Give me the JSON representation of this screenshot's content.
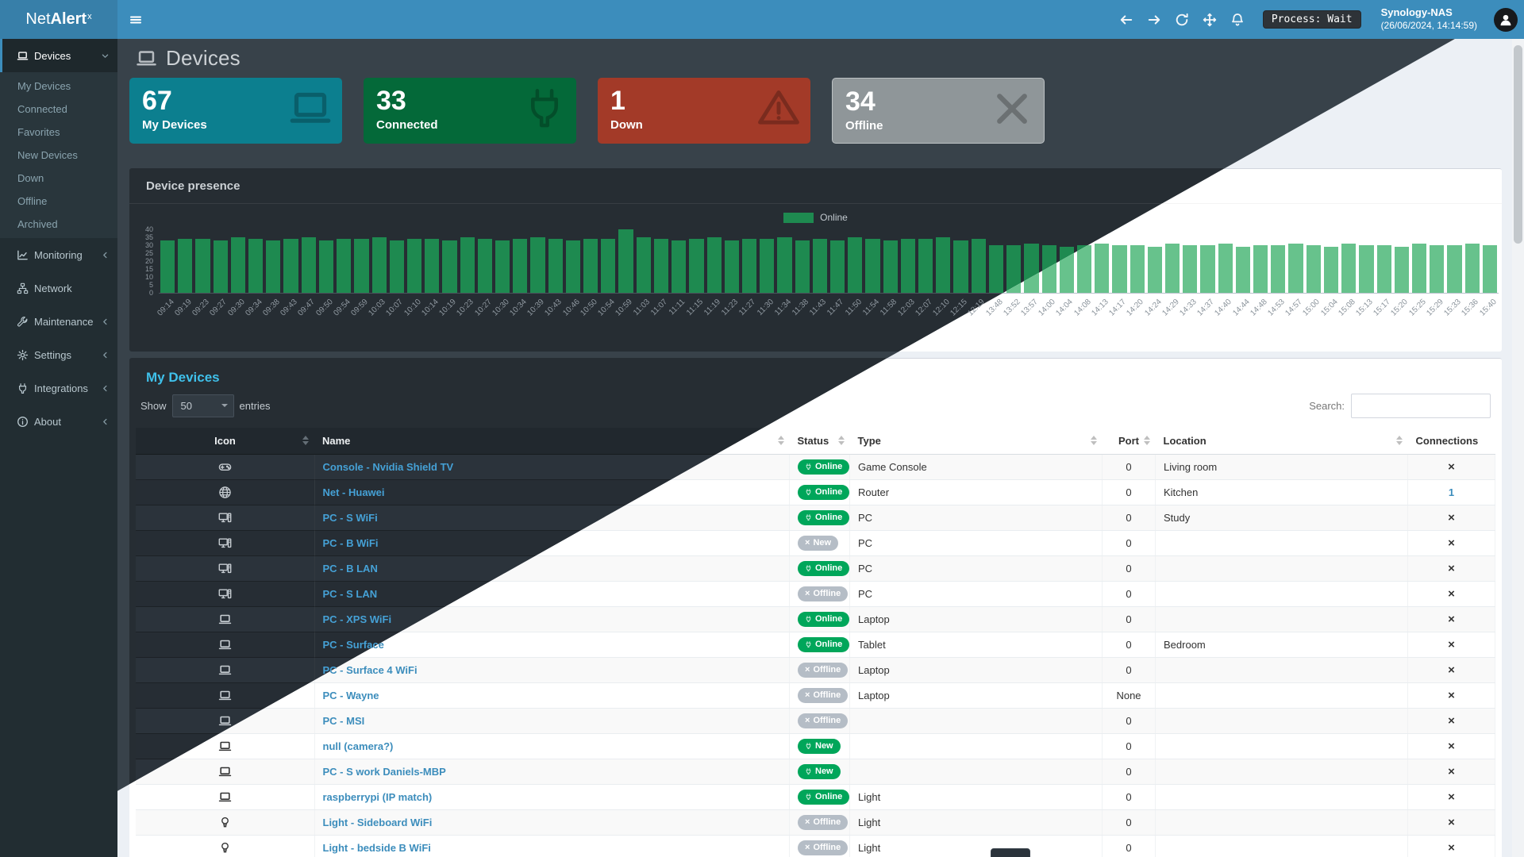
{
  "header": {
    "logo": {
      "light": "Net",
      "bold": "Alert",
      "sup": "x"
    },
    "toolbar_icons": [
      "arrow-left",
      "arrow-right",
      "refresh",
      "move",
      "bell"
    ],
    "process_badge": "Process: Wait",
    "nas_name": "Synology-NAS",
    "nas_time": "(26/06/2024, 14:14:59)"
  },
  "sidebar": {
    "items": [
      {
        "label": "Devices",
        "icon": "laptop",
        "chevron": "down",
        "active": true,
        "children": [
          "My Devices",
          "Connected",
          "Favorites",
          "New Devices",
          "Down",
          "Offline",
          "Archived"
        ]
      },
      {
        "label": "Monitoring",
        "icon": "chart",
        "chevron": "left"
      },
      {
        "label": "Network",
        "icon": "network",
        "chevron": ""
      },
      {
        "label": "Maintenance",
        "icon": "wrench",
        "chevron": "left"
      },
      {
        "label": "Settings",
        "icon": "gear",
        "chevron": "left"
      },
      {
        "label": "Integrations",
        "icon": "plug",
        "chevron": "left"
      },
      {
        "label": "About",
        "icon": "info",
        "chevron": "left"
      }
    ]
  },
  "page": {
    "title": "Devices",
    "title_icon": "laptop"
  },
  "cards": [
    {
      "value": "67",
      "label": "My Devices",
      "icon": "laptop",
      "color": "#0c7f8f"
    },
    {
      "value": "33",
      "label": "Connected",
      "icon": "plug",
      "color": "#046939"
    },
    {
      "value": "1",
      "label": "Down",
      "icon": "warning",
      "color": "#a33a28"
    },
    {
      "value": "34",
      "label": "Offline",
      "icon": "xmark",
      "color": "#8f9699",
      "border": "#bcc1c4"
    }
  ],
  "chart_data": {
    "type": "bar",
    "title": "Device presence",
    "legend_label": "Online",
    "legend_position": "top-center",
    "grid": false,
    "ylim": [
      0,
      40
    ],
    "yticks": [
      40,
      35,
      30,
      25,
      20,
      15,
      10,
      5,
      0
    ],
    "bar_color_dark": "#1e8a50",
    "bar_color_light": "#67c28c",
    "x": [
      "09:14",
      "09:19",
      "09:23",
      "09:27",
      "09:30",
      "09:34",
      "09:38",
      "09:43",
      "09:47",
      "09:50",
      "09:54",
      "09:59",
      "10:03",
      "10:07",
      "10:10",
      "10:14",
      "10:19",
      "10:23",
      "10:27",
      "10:30",
      "10:34",
      "10:39",
      "10:43",
      "10:46",
      "10:50",
      "10:54",
      "10:59",
      "11:03",
      "11:07",
      "11:11",
      "11:15",
      "11:19",
      "11:23",
      "11:27",
      "11:30",
      "11:34",
      "11:38",
      "11:43",
      "11:47",
      "11:50",
      "11:54",
      "11:58",
      "12:03",
      "12:07",
      "12:10",
      "12:15",
      "12:19",
      "13:48",
      "13:52",
      "13:57",
      "14:00",
      "14:04",
      "14:08",
      "14:13",
      "14:17",
      "14:20",
      "14:24",
      "14:29",
      "14:33",
      "14:37",
      "14:40",
      "14:44",
      "14:48",
      "14:53",
      "14:57",
      "15:00",
      "15:04",
      "15:08",
      "15:13",
      "15:17",
      "15:20",
      "15:25",
      "15:29",
      "15:33",
      "15:36",
      "15:40"
    ],
    "series": [
      {
        "name": "Online",
        "values": [
          33,
          34,
          34,
          33,
          35,
          34,
          33,
          34,
          35,
          33,
          34,
          34,
          35,
          33,
          34,
          34,
          33,
          35,
          34,
          33,
          34,
          35,
          34,
          33,
          34,
          34,
          40,
          35,
          34,
          33,
          34,
          35,
          33,
          34,
          34,
          35,
          33,
          34,
          33,
          35,
          34,
          33,
          34,
          34,
          35,
          33,
          34,
          30,
          30,
          31,
          30,
          29,
          30,
          31,
          30,
          30,
          29,
          31,
          30,
          30,
          31,
          29,
          30,
          30,
          31,
          30,
          29,
          31,
          30,
          30,
          29,
          31,
          30,
          30,
          31,
          30
        ]
      }
    ]
  },
  "table": {
    "panel_title": "My Devices",
    "length_before": "Show",
    "length_value": "50",
    "length_after": "entries",
    "search_label": "Search:",
    "search_value": "",
    "columns": [
      {
        "label": "Icon",
        "sort": true,
        "align": "center"
      },
      {
        "label": "Name",
        "sort": true,
        "align": "left"
      },
      {
        "label": "Status",
        "sort": true,
        "align": "left"
      },
      {
        "label": "Type",
        "sort": true,
        "align": "left"
      },
      {
        "label": "Port",
        "sort": true,
        "align": "center"
      },
      {
        "label": "Location",
        "sort": true,
        "align": "left"
      },
      {
        "label": "Connections",
        "sort": false,
        "align": "left"
      }
    ],
    "status_colors": {
      "online": "#00a65a",
      "offline": "#b5bdc6",
      "new-green": "#00a65a",
      "new-gray": "#b5bdc6"
    },
    "rows": [
      {
        "icon": "gamepad",
        "name": "Console - Nvidia Shield TV",
        "status": "Online",
        "status_style": "online",
        "type": "Game Console",
        "port": "0",
        "location": "Living room",
        "connections": "x"
      },
      {
        "icon": "globe",
        "name": "Net - Huawei",
        "status": "Online",
        "status_style": "online",
        "type": "Router",
        "port": "0",
        "location": "Kitchen",
        "connections": "1"
      },
      {
        "icon": "desktop",
        "name": "PC - S WiFi",
        "status": "Online",
        "status_style": "online",
        "type": "PC",
        "port": "0",
        "location": "Study",
        "connections": "x"
      },
      {
        "icon": "desktop",
        "name": "PC - B WiFi",
        "status": "New",
        "status_style": "new-gray",
        "type": "PC",
        "port": "0",
        "location": "",
        "connections": "x"
      },
      {
        "icon": "desktop",
        "name": "PC - B LAN",
        "status": "Online",
        "status_style": "online",
        "type": "PC",
        "port": "0",
        "location": "",
        "connections": "x"
      },
      {
        "icon": "desktop",
        "name": "PC - S LAN",
        "status": "Offline",
        "status_style": "offline",
        "type": "PC",
        "port": "0",
        "location": "",
        "connections": "x"
      },
      {
        "icon": "laptop",
        "name": "PC - XPS WiFi",
        "status": "Online",
        "status_style": "online",
        "type": "Laptop",
        "port": "0",
        "location": "",
        "connections": "x"
      },
      {
        "icon": "laptop",
        "name": "PC - Surface",
        "status": "Online",
        "status_style": "online",
        "type": "Tablet",
        "port": "0",
        "location": "Bedroom",
        "connections": "x"
      },
      {
        "icon": "laptop",
        "name": "PC - Surface 4 WiFi",
        "status": "Offline",
        "status_style": "offline",
        "type": "Laptop",
        "port": "0",
        "location": "",
        "connections": "x"
      },
      {
        "icon": "laptop",
        "name": "PC - Wayne",
        "status": "Offline",
        "status_style": "offline",
        "type": "Laptop",
        "port": "None",
        "location": "",
        "connections": "x"
      },
      {
        "icon": "laptop",
        "name": "PC - MSI",
        "status": "Offline",
        "status_style": "offline",
        "type": "",
        "port": "0",
        "location": "",
        "connections": "x"
      },
      {
        "icon": "laptop",
        "name": "null (camera?)",
        "status": "New",
        "status_style": "new-green",
        "type": "",
        "port": "0",
        "location": "",
        "connections": "x"
      },
      {
        "icon": "laptop",
        "name": "PC - S work Daniels-MBP",
        "status": "New",
        "status_style": "new-green",
        "type": "",
        "port": "0",
        "location": "",
        "connections": "x"
      },
      {
        "icon": "laptop",
        "name": "raspberrypi (IP match)",
        "status": "Online",
        "status_style": "online",
        "type": "Light",
        "port": "0",
        "location": "",
        "connections": "x"
      },
      {
        "icon": "lightbulb",
        "name": "Light - Sideboard WiFi",
        "status": "Offline",
        "status_style": "offline",
        "type": "Light",
        "port": "0",
        "location": "",
        "connections": "x"
      },
      {
        "icon": "lightbulb",
        "name": "Light - bedside B WiFi",
        "status": "Offline",
        "status_style": "offline",
        "type": "Light",
        "port": "0",
        "location": "",
        "connections": "x"
      }
    ]
  },
  "theme_split": {
    "description": "diagonal split dark/light",
    "light_region": "lower-right triangle"
  }
}
